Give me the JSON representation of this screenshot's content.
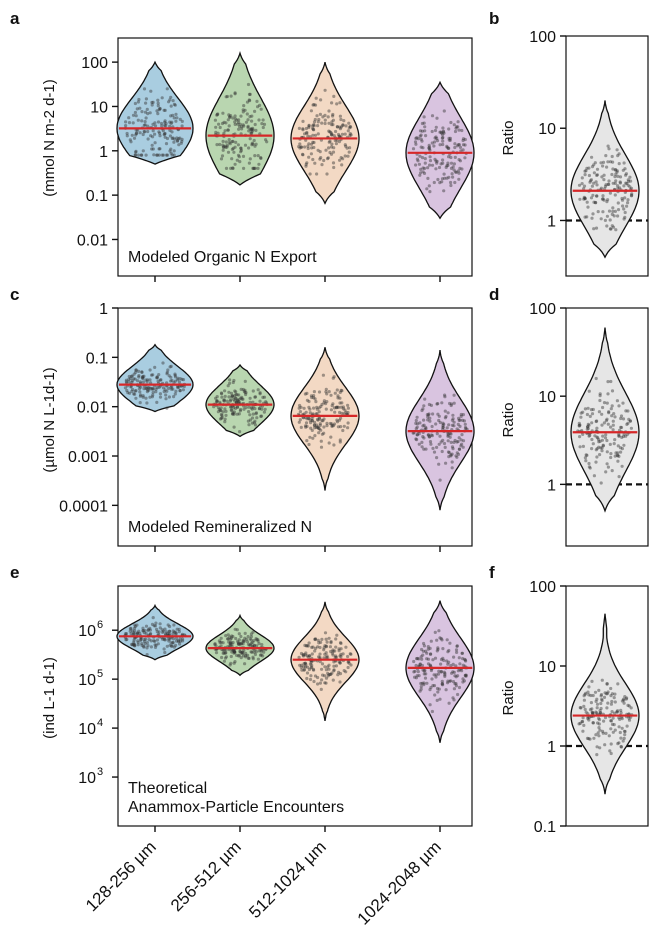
{
  "colors": {
    "size_fills": [
      "#a9cde0",
      "#b9d6b0",
      "#f3d9c4",
      "#d9c4e0"
    ],
    "ratio_fill": "#e6e6e6",
    "median_line": "#d62728",
    "reference_line": "#111111",
    "points": "#333333"
  },
  "chart_data": [
    {
      "panel": "a",
      "type": "violin",
      "y_scale": "log",
      "ylabel": "(mmol N m-2 d-1)",
      "annotation": "Modeled Organic N Export",
      "ylim": [
        0.0015,
        350
      ],
      "yticks": [
        "100",
        "10",
        "1",
        "0.1",
        "0.01"
      ],
      "yticks_values": [
        100,
        10,
        1,
        0.1,
        0.01
      ],
      "categories": [
        "128-256 µm",
        "256-512 µm",
        "512-1024 µm",
        "1024-2048 µm"
      ],
      "series": [
        {
          "median": 3.2,
          "min": 0.5,
          "max": 100,
          "q_low": 1.2,
          "q_high": 10,
          "point_range": [
            0.8,
            60
          ]
        },
        {
          "median": 2.2,
          "min": 0.17,
          "max": 160,
          "q_low": 0.7,
          "q_high": 10,
          "point_range": [
            0.4,
            80
          ]
        },
        {
          "median": 1.9,
          "min": 0.065,
          "max": 100,
          "q_low": 0.6,
          "q_high": 6,
          "point_range": [
            0.3,
            50
          ]
        },
        {
          "median": 0.9,
          "min": 0.03,
          "max": 35,
          "q_low": 0.25,
          "q_high": 3,
          "point_range": [
            0.1,
            25
          ]
        }
      ]
    },
    {
      "panel": "b",
      "type": "violin",
      "y_scale": "log",
      "ylabel": "Ratio",
      "ylim": [
        0.25,
        100
      ],
      "yticks": [
        "100",
        "10",
        "1"
      ],
      "yticks_values": [
        100,
        10,
        1
      ],
      "reference": 1,
      "series": [
        {
          "median": 2.1,
          "min": 0.4,
          "max": 20,
          "q_low": 1.2,
          "q_high": 4,
          "point_range": [
            0.7,
            12
          ]
        }
      ]
    },
    {
      "panel": "c",
      "type": "violin",
      "y_scale": "log",
      "ylabel": "(µmol N  L-1d-1)",
      "annotation": "Modeled Remineralized N",
      "ylim": [
        1.5e-05,
        1
      ],
      "yticks": [
        "1",
        "0.1",
        "0.01",
        "0.001",
        "0.0001"
      ],
      "yticks_values": [
        1,
        0.1,
        0.01,
        0.001,
        0.0001
      ],
      "categories": [
        "128-256 µm",
        "256-512 µm",
        "512-1024 µm",
        "1024-2048 µm"
      ],
      "series": [
        {
          "median": 0.028,
          "min": 0.008,
          "max": 0.18,
          "q_low": 0.016,
          "q_high": 0.05,
          "point_range": [
            0.009,
            0.12
          ]
        },
        {
          "median": 0.011,
          "min": 0.0025,
          "max": 0.07,
          "q_low": 0.006,
          "q_high": 0.02,
          "point_range": [
            0.003,
            0.06
          ]
        },
        {
          "median": 0.0065,
          "min": 0.0002,
          "max": 0.16,
          "q_low": 0.0025,
          "q_high": 0.015,
          "point_range": [
            0.0004,
            0.1
          ]
        },
        {
          "median": 0.0032,
          "min": 8e-05,
          "max": 0.14,
          "q_low": 0.0012,
          "q_high": 0.009,
          "point_range": [
            0.00015,
            0.1
          ]
        }
      ]
    },
    {
      "panel": "d",
      "type": "violin",
      "y_scale": "log",
      "ylabel": "Ratio",
      "ylim": [
        0.2,
        100
      ],
      "yticks": [
        "100",
        "10",
        "1"
      ],
      "yticks_values": [
        100,
        10,
        1
      ],
      "reference": 1,
      "series": [
        {
          "median": 3.9,
          "min": 0.5,
          "max": 60,
          "q_low": 2,
          "q_high": 8,
          "point_range": [
            0.8,
            40
          ]
        }
      ]
    },
    {
      "panel": "e",
      "type": "violin",
      "y_scale": "log",
      "ylabel": "(ind L-1 d-1)",
      "annotation": [
        "Theoretical",
        "Anammox-Particle Encounters"
      ],
      "ylim": [
        100,
        8000000
      ],
      "yticks_exp": [
        "6",
        "5",
        "4",
        "3"
      ],
      "yticks_values": [
        1000000,
        100000,
        10000,
        1000
      ],
      "categories": [
        "128-256 µm",
        "256-512 µm",
        "512-1024 µm",
        "1024-2048 µm"
      ],
      "series": [
        {
          "median": 750000,
          "min": 250000,
          "max": 3200000,
          "q_low": 500000,
          "q_high": 1100000,
          "point_range": [
            300000,
            2500000
          ]
        },
        {
          "median": 430000,
          "min": 120000,
          "max": 2000000,
          "q_low": 280000,
          "q_high": 650000,
          "point_range": [
            150000,
            1500000
          ]
        },
        {
          "median": 250000,
          "min": 14000,
          "max": 3800000,
          "q_low": 120000,
          "q_high": 500000,
          "point_range": [
            30000,
            3000000
          ]
        },
        {
          "median": 170000,
          "min": 5000,
          "max": 4000000,
          "q_low": 60000,
          "q_high": 400000,
          "point_range": [
            10000,
            3000000
          ]
        }
      ]
    },
    {
      "panel": "f",
      "type": "violin",
      "y_scale": "log",
      "ylabel": "Ratio",
      "ylim": [
        0.1,
        100
      ],
      "yticks": [
        "100",
        "10",
        "1",
        "0.1"
      ],
      "yticks_values": [
        100,
        10,
        1,
        0.1
      ],
      "reference": 1,
      "series": [
        {
          "median": 2.4,
          "min": 0.25,
          "max": 45,
          "q_low": 1.3,
          "q_high": 4.5,
          "point_range": [
            0.4,
            40
          ]
        }
      ]
    }
  ]
}
